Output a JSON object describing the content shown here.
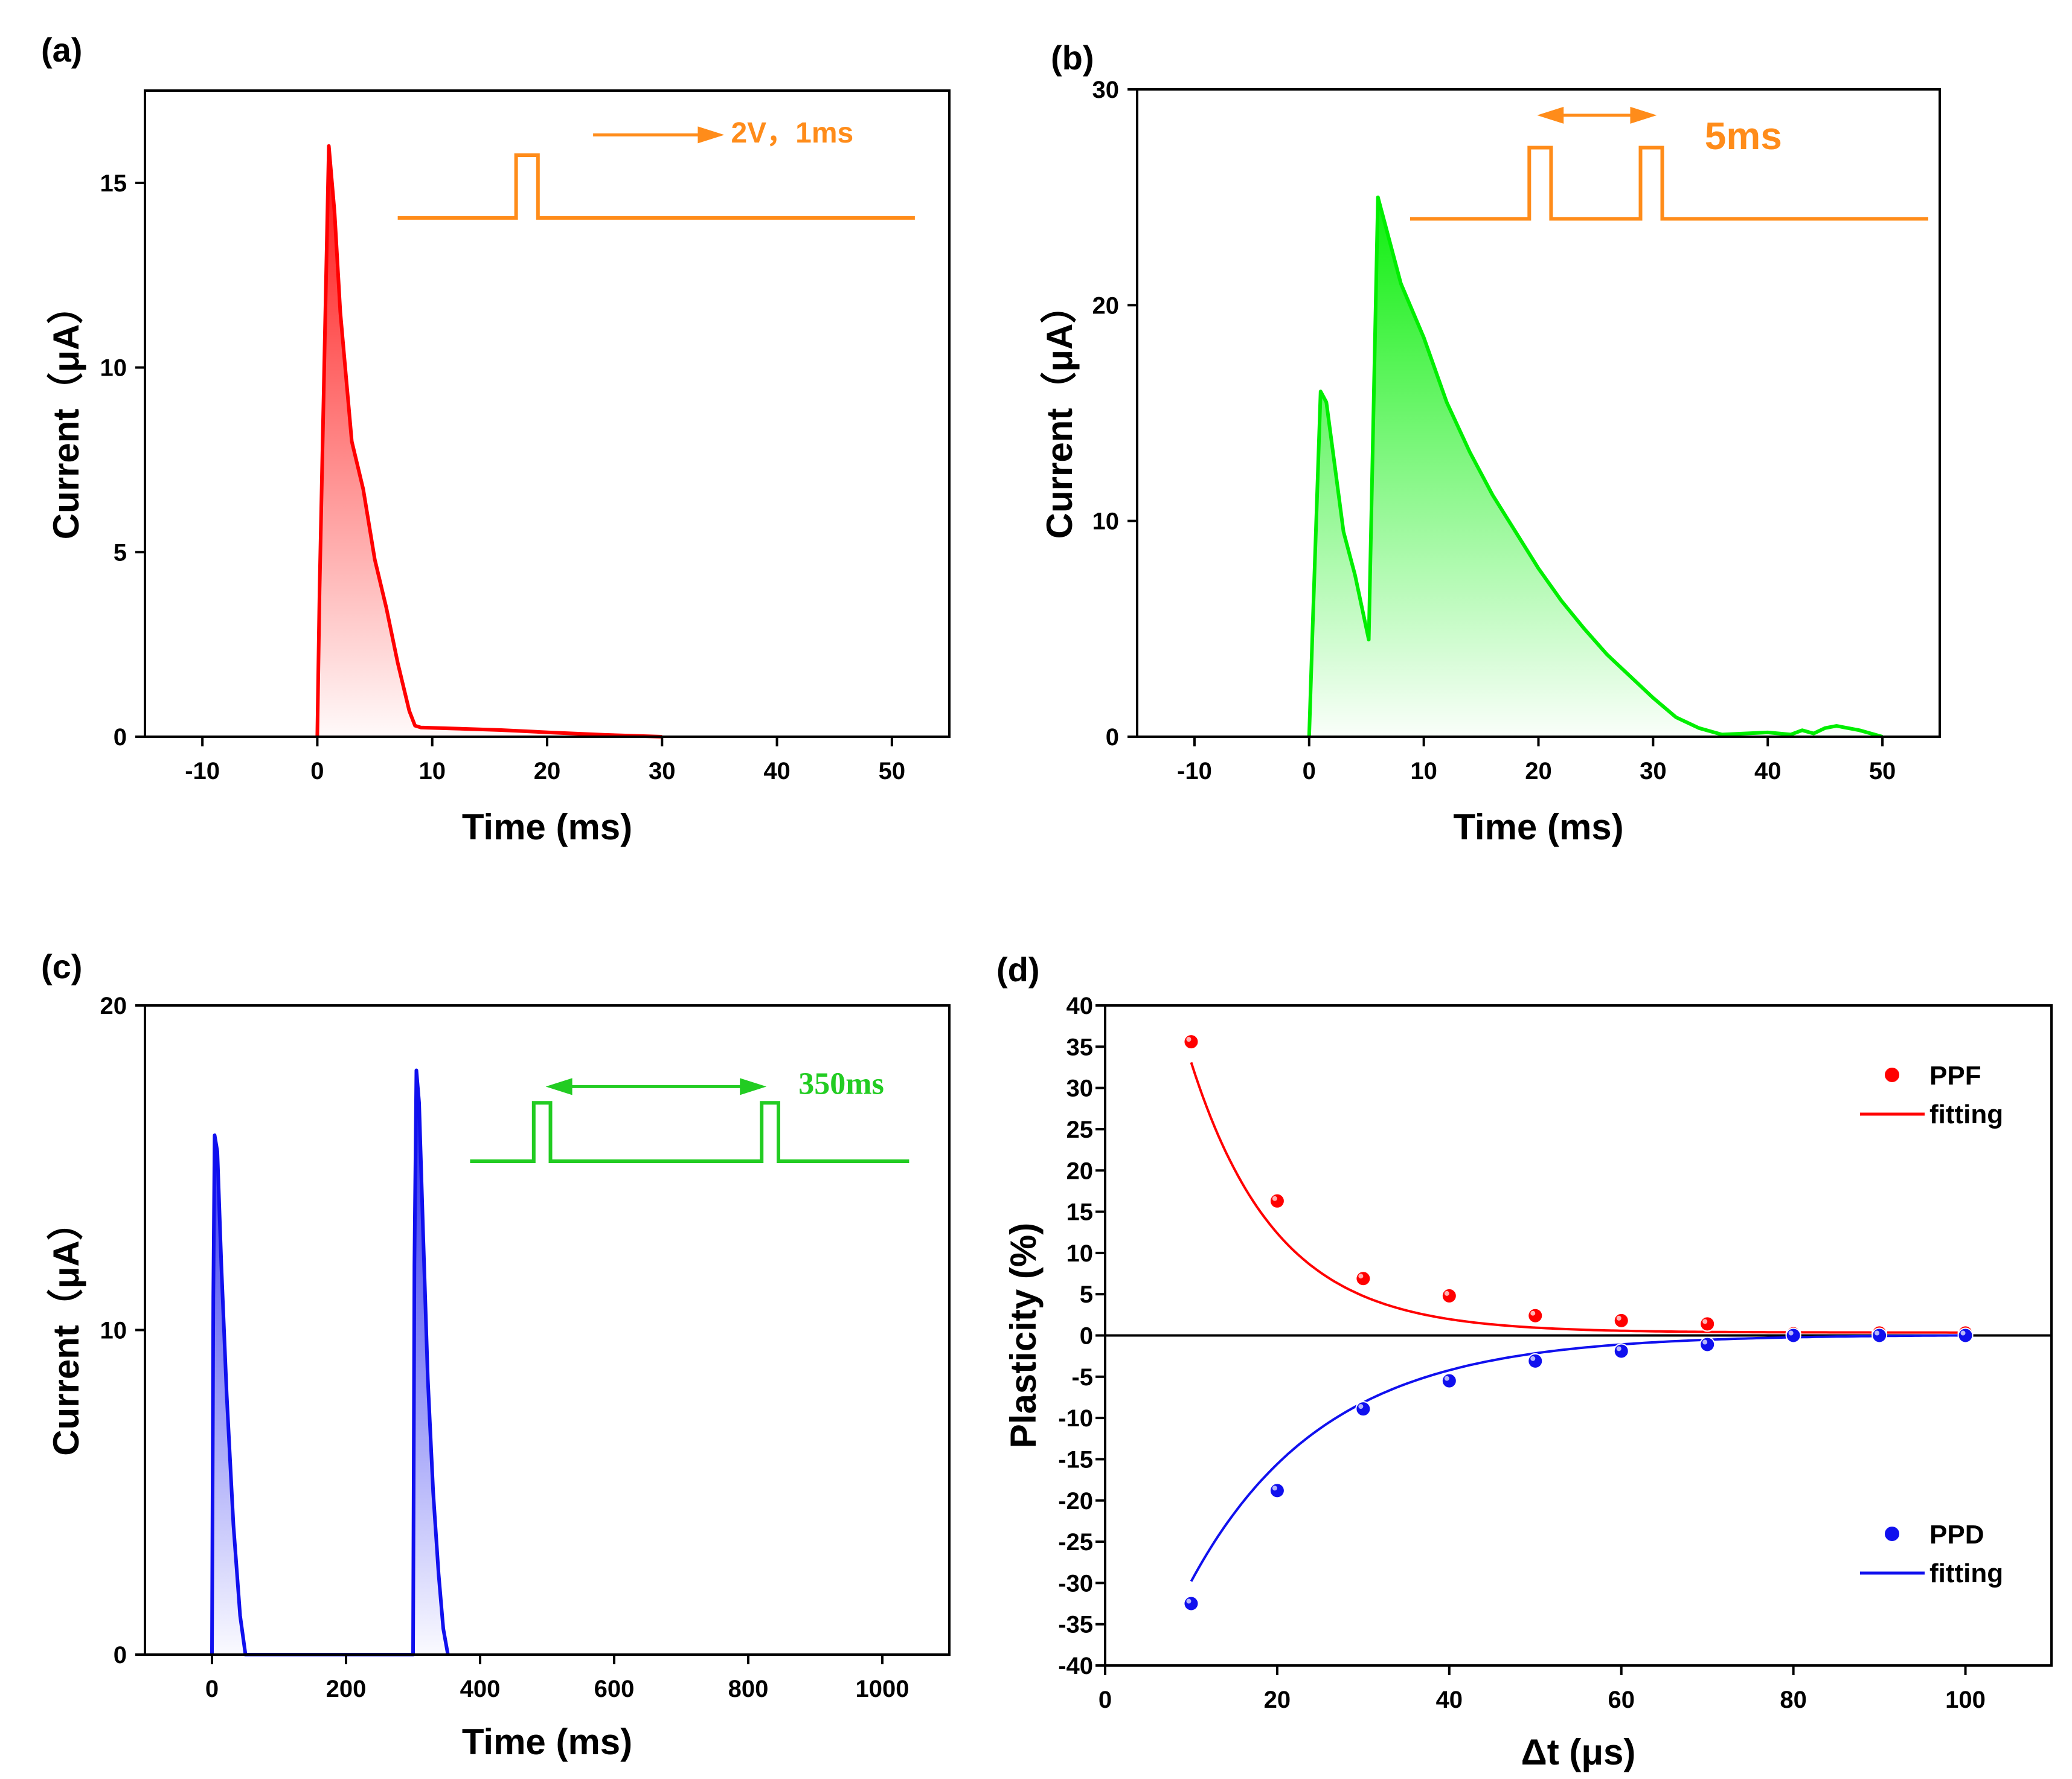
{
  "figure": {
    "background": "#ffffff"
  },
  "chart_data": [
    {
      "id": "a",
      "panel_label": "(a)",
      "type": "area",
      "color": "#ff0000",
      "xlabel": "Time (ms)",
      "ylabel": "Current（μA）",
      "xlim": [
        -15,
        55
      ],
      "ylim": [
        0,
        17.5
      ],
      "xticks": [
        -10,
        0,
        10,
        20,
        30,
        40,
        50
      ],
      "yticks": [
        0,
        5,
        10,
        15
      ],
      "x": [
        0,
        0.2,
        1,
        1.5,
        2,
        3,
        4,
        5,
        6,
        7,
        8,
        8.5,
        9,
        12,
        16,
        20,
        25,
        30
      ],
      "y": [
        0,
        4,
        16,
        14.2,
        11.5,
        8,
        6.7,
        4.8,
        3.5,
        2.0,
        0.7,
        0.3,
        0.25,
        0.22,
        0.18,
        0.12,
        0.05,
        0
      ],
      "annotation": {
        "text": "2V，1ms",
        "color": "#ff8c1a",
        "pulses": [
          {
            "start": 17.3,
            "end": 19.2
          }
        ],
        "baseline": {
          "from": 7,
          "to": 52,
          "level": 14.05,
          "high": 15.75
        },
        "arrow": {
          "from": 24,
          "to": 35,
          "level": 16.3,
          "double": false
        },
        "text_pos": {
          "x": 36,
          "y": 16.3
        }
      }
    },
    {
      "id": "b",
      "panel_label": "(b)",
      "type": "area",
      "color": "#00ee00",
      "xlabel": "Time (ms)",
      "ylabel": "Current（μA）",
      "xlim": [
        -15,
        55
      ],
      "ylim": [
        0,
        30
      ],
      "xticks": [
        -10,
        0,
        10,
        20,
        30,
        40,
        50
      ],
      "yticks": [
        0,
        10,
        20,
        30
      ],
      "x": [
        0,
        0.3,
        1,
        1.5,
        2,
        3,
        4,
        5,
        5.2,
        6,
        7,
        8,
        10,
        12,
        14,
        16,
        18,
        20,
        22,
        24,
        26,
        28,
        30,
        32,
        34,
        36,
        38,
        40,
        42,
        43,
        44,
        45,
        46,
        48,
        50
      ],
      "y": [
        0,
        5,
        16,
        15.5,
        13.5,
        9.5,
        7.5,
        5,
        4.5,
        25,
        23,
        21,
        18.5,
        15.5,
        13.2,
        11.2,
        9.5,
        7.8,
        6.3,
        5.0,
        3.8,
        2.8,
        1.8,
        0.9,
        0.4,
        0.1,
        0.15,
        0.2,
        0.1,
        0.3,
        0.15,
        0.4,
        0.5,
        0.3,
        0
      ],
      "annotation": {
        "text": "5ms",
        "color": "#ff8c1a",
        "pulses": [
          {
            "start": 19.2,
            "end": 21.1
          },
          {
            "start": 28.9,
            "end": 30.8
          }
        ],
        "baseline": {
          "from": 8.8,
          "to": 54,
          "level": 24,
          "high": 27.3
        },
        "arrow": {
          "from": 20.3,
          "to": 29.9,
          "level": 28.8,
          "double": true
        },
        "text_pos": {
          "x": 34.5,
          "y": 27.7
        }
      }
    },
    {
      "id": "c",
      "panel_label": "(c)",
      "type": "area",
      "color": "#1010ee",
      "xlabel": "Time (ms)",
      "ylabel": "Current（μA）",
      "xlim": [
        -100,
        1100
      ],
      "ylim": [
        0,
        20
      ],
      "xticks": [
        0,
        200,
        400,
        600,
        800,
        1000
      ],
      "yticks": [
        0,
        10,
        20
      ],
      "x": [
        0,
        2,
        4,
        8,
        14,
        22,
        32,
        42,
        50,
        300,
        302,
        305,
        309,
        315,
        322,
        330,
        338,
        345,
        352
      ],
      "y": [
        0,
        11,
        16,
        15.5,
        12,
        8,
        4,
        1.2,
        0,
        0,
        12,
        18,
        17,
        13,
        8.5,
        5,
        2.5,
        0.8,
        0
      ],
      "annotation": {
        "text": "350ms",
        "color": "#22cc22",
        "pulses": [
          {
            "start": 480,
            "end": 505
          },
          {
            "start": 820,
            "end": 845
          }
        ],
        "baseline": {
          "from": 385,
          "to": 1040,
          "level": 15.2,
          "high": 17
        },
        "arrow": {
          "from": 505,
          "to": 820,
          "level": 17.5,
          "double": true
        },
        "text_pos": {
          "x": 875,
          "y": 17.5
        }
      }
    },
    {
      "id": "d",
      "panel_label": "(d)",
      "type": "scatter",
      "xlabel": "Δt (μs)",
      "ylabel": "Plasticity (%)",
      "xlim": [
        0,
        110
      ],
      "ylim": [
        -40,
        40
      ],
      "xticks": [
        0,
        20,
        40,
        60,
        80,
        100
      ],
      "yticks": [
        -40,
        -35,
        -30,
        -25,
        -20,
        -15,
        -10,
        -5,
        0,
        5,
        10,
        15,
        20,
        25,
        30,
        35,
        40
      ],
      "zero_line": true,
      "series": [
        {
          "name": "PPF",
          "color": "#ff0000",
          "x": [
            10,
            20,
            30,
            40,
            50,
            60,
            70,
            80,
            90,
            100
          ],
          "y": [
            35.6,
            16.3,
            6.9,
            4.8,
            2.4,
            1.8,
            1.4,
            0.2,
            0.3,
            0.3
          ],
          "fit": {
            "amplitude": 89.0,
            "tau": 10.0,
            "offset": 0.35,
            "from": 10,
            "to": 100
          },
          "fit_name": "fitting"
        },
        {
          "name": "PPD",
          "color": "#1010ee",
          "x": [
            10,
            20,
            30,
            40,
            50,
            60,
            70,
            80,
            90,
            100
          ],
          "y": [
            -32.5,
            -18.8,
            -8.9,
            -5.5,
            -3.1,
            -1.9,
            -1.1,
            0,
            0,
            0
          ],
          "fit": {
            "amplitude": -57.0,
            "tau": 15.5,
            "offset": 0.1,
            "from": 10,
            "to": 100
          },
          "fit_name": "fitting"
        }
      ]
    }
  ]
}
